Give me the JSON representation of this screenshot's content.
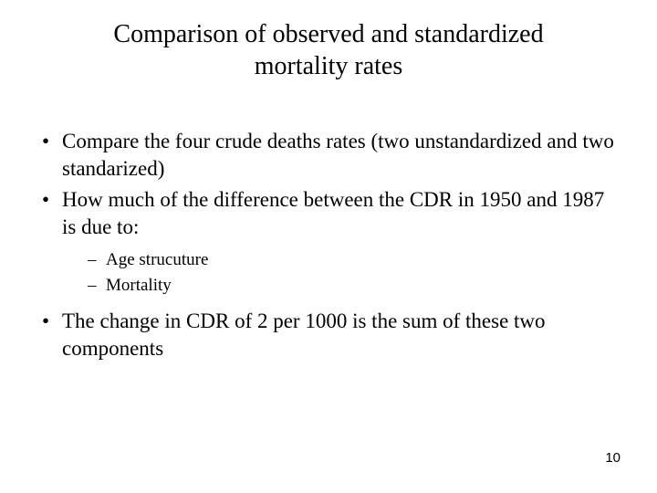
{
  "title": "Comparison of observed and standardized mortality rates",
  "bullets": {
    "b1": "Compare the four crude deaths rates (two unstandardized and two standarized)",
    "b2": "How much of the difference between the CDR in 1950 and 1987 is due to:",
    "b2_sub": {
      "s1": "Age strucuture",
      "s2": "Mortality"
    },
    "b3": "The change in CDR of 2 per 1000 is the sum of these two components"
  },
  "page_number": "10",
  "styling": {
    "background_color": "#ffffff",
    "text_color": "#000000",
    "title_fontsize": 28,
    "body_fontsize": 23,
    "sub_fontsize": 19,
    "pagenum_fontsize": 15,
    "font_family": "Times New Roman"
  }
}
